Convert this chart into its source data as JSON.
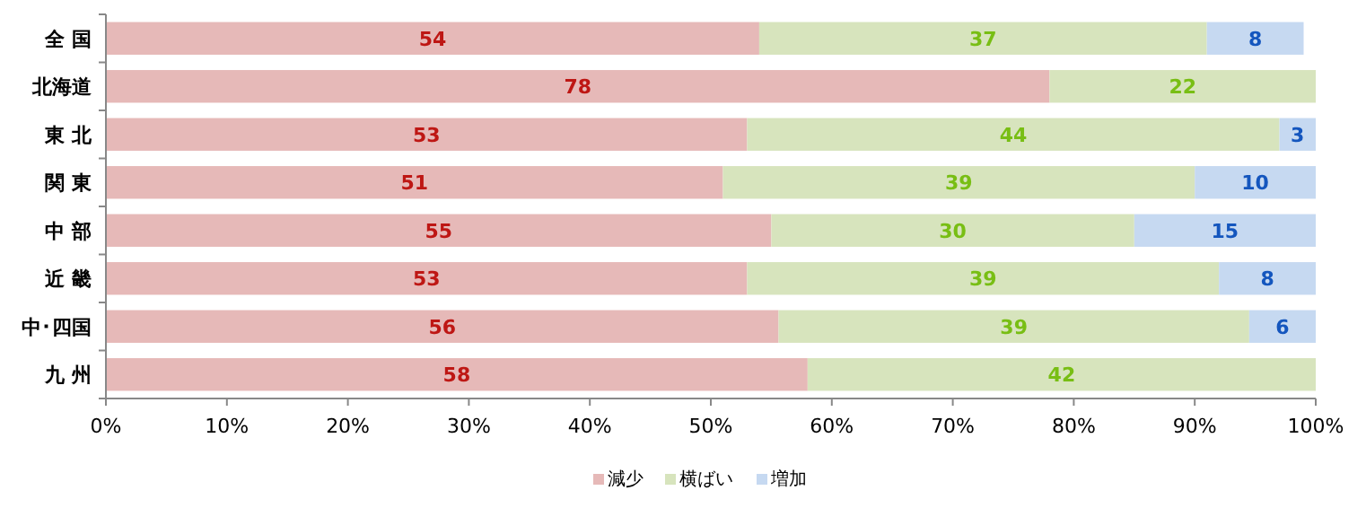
{
  "chart_data": {
    "type": "bar",
    "orientation": "horizontal",
    "stacked": true,
    "legend": "bottom",
    "categories": [
      "全 国",
      "北海道",
      "東 北",
      "関 東",
      "中 部",
      "近 畿",
      "中･四国",
      "九 州"
    ],
    "series": [
      {
        "name": "減少",
        "color": "#e6b9b8",
        "values": [
          54,
          78,
          53,
          51,
          55,
          53,
          55.6,
          58
        ],
        "value_labels": [
          "54",
          "78",
          "53",
          "51",
          "55",
          "53",
          "56",
          "58"
        ]
      },
      {
        "name": "横ばい",
        "color": "#d7e4bd",
        "values": [
          37,
          22,
          44,
          39,
          30,
          39,
          38.9,
          42
        ],
        "value_labels": [
          "37",
          "22",
          "44",
          "39",
          "30",
          "39",
          "39",
          "42"
        ]
      },
      {
        "name": "増加",
        "color": "#c6d9f1",
        "values": [
          8,
          null,
          3,
          10,
          15,
          8,
          5.5,
          null
        ],
        "value_labels": [
          "8",
          null,
          "3",
          "10",
          "15",
          "8",
          "6",
          null
        ]
      }
    ],
    "xlim": [
      0,
      100
    ],
    "xticks": [
      {
        "value": 0,
        "label": "0%"
      },
      {
        "value": 10,
        "label": "10%"
      },
      {
        "value": 20,
        "label": "20%"
      },
      {
        "value": 30,
        "label": "30%"
      },
      {
        "value": 40,
        "label": "40%"
      },
      {
        "value": 50,
        "label": "50%"
      },
      {
        "value": 60,
        "label": "60%"
      },
      {
        "value": 70,
        "label": "70%"
      },
      {
        "value": 80,
        "label": "80%"
      },
      {
        "value": 90,
        "label": "90%"
      },
      {
        "value": 100,
        "label": "100%"
      }
    ]
  }
}
